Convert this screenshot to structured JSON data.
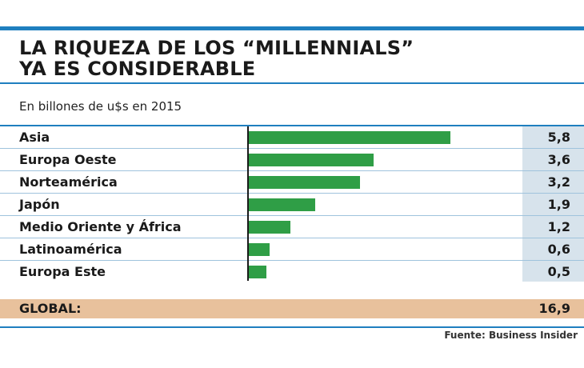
{
  "header": {
    "title_line1": "LA RIQUEZA DE LOS “MILLENNIALS”",
    "title_line2": "YA ES CONSIDERABLE"
  },
  "subtitle": "En billones de u$s en 2015",
  "colors": {
    "accent": "#1f7fbf",
    "bar": "#2f9e46",
    "total_row": "#e8c19c",
    "value_column": "#d7e3ec"
  },
  "chart_data": {
    "type": "bar",
    "orientation": "horizontal",
    "title": "LA RIQUEZA DE LOS “MILLENNIALS” YA ES CONSIDERABLE",
    "subtitle": "En billones de u$s en 2015",
    "categories": [
      "Asia",
      "Europa Oeste",
      "Norteamérica",
      "Japón",
      "Medio Oriente y África",
      "Latinoamérica",
      "Europa Este"
    ],
    "values": [
      5.8,
      3.6,
      3.2,
      1.9,
      1.2,
      0.6,
      0.5
    ],
    "value_labels": [
      "5,8",
      "3,6",
      "3,2",
      "1,9",
      "1,2",
      "0,6",
      "0,5"
    ],
    "xlim": [
      0,
      7.6
    ],
    "grid": false,
    "legend": "none"
  },
  "total": {
    "label": "GLOBAL:",
    "value": "16,9"
  },
  "source": "Fuente: Business Insider"
}
